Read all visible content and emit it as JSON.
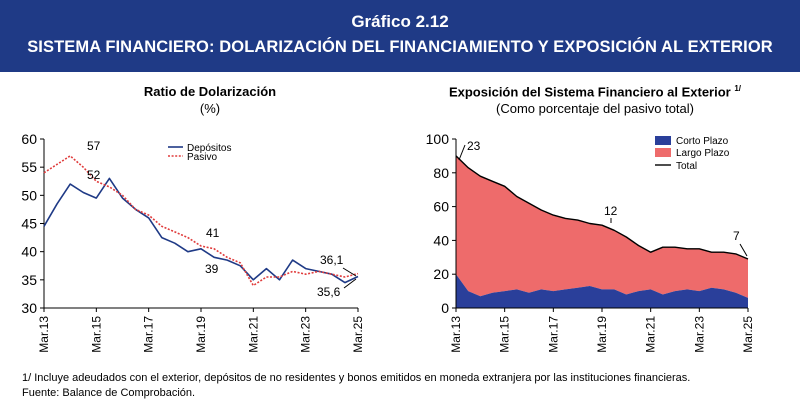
{
  "header": {
    "number": "Gráfico 2.12",
    "title": "SISTEMA FINANCIERO: DOLARIZACIÓN DEL FINANCIAMIENTO Y EXPOSICIÓN AL EXTERIOR"
  },
  "footnotes": {
    "note": "1/ Incluye adeudados con el exterior, depósitos de no residentes y bonos emitidos en moneda extranjera por las instituciones financieras.",
    "source": "Fuente: Balance de Comprobación."
  },
  "colors": {
    "header_bg": "#1f3a86",
    "depositos": "#1f3a86",
    "pasivo": "#e03c3c",
    "corto_plazo": "#2a3f9a",
    "largo_plazo": "#ee6b6b",
    "total": "#000000"
  },
  "chart_data": [
    {
      "type": "line",
      "title": "Ratio de Dolarización",
      "subtitle": "(%)",
      "x_ticks": [
        "Mar.13",
        "Mar.15",
        "Mar.17",
        "Mar.19",
        "Mar.21",
        "Mar.23",
        "Mar.25"
      ],
      "ylim": [
        30,
        60
      ],
      "y_ticks": [
        30,
        35,
        40,
        45,
        50,
        55,
        60
      ],
      "grid": false,
      "legend": "top-center",
      "series": [
        {
          "name": "Depósitos",
          "style": "solid",
          "points": [
            [
              "Mar.13",
              44.5
            ],
            [
              "Sep.13",
              48.5
            ],
            [
              "Mar.14",
              52
            ],
            [
              "Sep.14",
              50.5
            ],
            [
              "Mar.15",
              49.5
            ],
            [
              "Sep.15",
              53
            ],
            [
              "Mar.16",
              49.5
            ],
            [
              "Sep.16",
              47.5
            ],
            [
              "Mar.17",
              46
            ],
            [
              "Sep.17",
              42.5
            ],
            [
              "Mar.18",
              41.5
            ],
            [
              "Sep.18",
              40
            ],
            [
              "Mar.19",
              40.5
            ],
            [
              "Sep.19",
              39
            ],
            [
              "Mar.20",
              38.5
            ],
            [
              "Sep.20",
              37.5
            ],
            [
              "Mar.21",
              35
            ],
            [
              "Sep.21",
              37
            ],
            [
              "Mar.22",
              35
            ],
            [
              "Sep.22",
              38.5
            ],
            [
              "Mar.23",
              37
            ],
            [
              "Sep.23",
              36.5
            ],
            [
              "Mar.24",
              36
            ],
            [
              "Sep.24",
              34.5
            ],
            [
              "Mar.25",
              35.6
            ]
          ]
        },
        {
          "name": "Pasivo",
          "style": "dotted",
          "points": [
            [
              "Mar.13",
              54
            ],
            [
              "Sep.13",
              55.5
            ],
            [
              "Mar.14",
              57
            ],
            [
              "Sep.14",
              55
            ],
            [
              "Mar.15",
              52.5
            ],
            [
              "Sep.15",
              51.5
            ],
            [
              "Mar.16",
              50
            ],
            [
              "Sep.16",
              47.5
            ],
            [
              "Mar.17",
              46.5
            ],
            [
              "Sep.17",
              44.5
            ],
            [
              "Mar.18",
              43.5
            ],
            [
              "Sep.18",
              42.5
            ],
            [
              "Mar.19",
              41
            ],
            [
              "Sep.19",
              40.5
            ],
            [
              "Mar.20",
              39
            ],
            [
              "Sep.20",
              38
            ],
            [
              "Mar.21",
              34
            ],
            [
              "Sep.21",
              35.5
            ],
            [
              "Mar.22",
              35.5
            ],
            [
              "Sep.22",
              36.5
            ],
            [
              "Mar.23",
              36
            ],
            [
              "Sep.23",
              36.5
            ],
            [
              "Mar.24",
              36
            ],
            [
              "Sep.24",
              35.5
            ],
            [
              "Mar.25",
              36.1
            ]
          ]
        }
      ],
      "annotations": [
        "57",
        "52",
        "41",
        "39",
        "36,1",
        "35,6"
      ]
    },
    {
      "type": "area",
      "title": "Exposición del Sistema Financiero al Exterior",
      "title_sup": "1/",
      "subtitle": "(Como porcentaje del pasivo total)",
      "x_ticks": [
        "Mar.13",
        "Mar.15",
        "Mar.17",
        "Mar.19",
        "Mar.21",
        "Mar.23",
        "Mar.25"
      ],
      "ylim": [
        0,
        100
      ],
      "y_ticks": [
        0,
        20,
        40,
        60,
        80,
        100
      ],
      "grid": false,
      "legend": "top-right",
      "stacked": true,
      "series": [
        {
          "name": "Corto Plazo",
          "points": [
            [
              "Mar.13",
              20
            ],
            [
              "Sep.13",
              10
            ],
            [
              "Mar.14",
              7
            ],
            [
              "Sep.14",
              9
            ],
            [
              "Mar.15",
              10
            ],
            [
              "Sep.15",
              11
            ],
            [
              "Mar.16",
              9
            ],
            [
              "Sep.16",
              11
            ],
            [
              "Mar.17",
              10
            ],
            [
              "Sep.17",
              11
            ],
            [
              "Mar.18",
              12
            ],
            [
              "Sep.18",
              13
            ],
            [
              "Mar.19",
              11
            ],
            [
              "Sep.19",
              11
            ],
            [
              "Mar.20",
              8
            ],
            [
              "Sep.20",
              10
            ],
            [
              "Mar.21",
              11
            ],
            [
              "Sep.21",
              8
            ],
            [
              "Mar.22",
              10
            ],
            [
              "Sep.22",
              11
            ],
            [
              "Mar.23",
              10
            ],
            [
              "Sep.23",
              12
            ],
            [
              "Mar.24",
              11
            ],
            [
              "Sep.24",
              9
            ],
            [
              "Mar.25",
              6
            ]
          ]
        },
        {
          "name": "Largo Plazo",
          "points": [
            [
              "Mar.13",
              70
            ],
            [
              "Sep.13",
              73
            ],
            [
              "Mar.14",
              71
            ],
            [
              "Sep.14",
              66
            ],
            [
              "Mar.15",
              62
            ],
            [
              "Sep.15",
              55
            ],
            [
              "Mar.16",
              53
            ],
            [
              "Sep.16",
              47
            ],
            [
              "Mar.17",
              45
            ],
            [
              "Sep.17",
              42
            ],
            [
              "Mar.18",
              40
            ],
            [
              "Sep.18",
              37
            ],
            [
              "Mar.19",
              38
            ],
            [
              "Sep.19",
              35
            ],
            [
              "Mar.20",
              34
            ],
            [
              "Sep.20",
              27
            ],
            [
              "Mar.21",
              22
            ],
            [
              "Sep.21",
              28
            ],
            [
              "Mar.22",
              26
            ],
            [
              "Sep.22",
              24
            ],
            [
              "Mar.23",
              25
            ],
            [
              "Sep.23",
              21
            ],
            [
              "Mar.24",
              22
            ],
            [
              "Sep.24",
              23
            ],
            [
              "Mar.25",
              23
            ]
          ]
        },
        {
          "name": "Total",
          "points": [
            [
              "Mar.13",
              90
            ],
            [
              "Sep.13",
              83
            ],
            [
              "Mar.14",
              78
            ],
            [
              "Sep.14",
              75
            ],
            [
              "Mar.15",
              72
            ],
            [
              "Sep.15",
              66
            ],
            [
              "Mar.16",
              62
            ],
            [
              "Sep.16",
              58
            ],
            [
              "Mar.17",
              55
            ],
            [
              "Sep.17",
              53
            ],
            [
              "Mar.18",
              52
            ],
            [
              "Sep.18",
              50
            ],
            [
              "Mar.19",
              49
            ],
            [
              "Sep.19",
              46
            ],
            [
              "Mar.20",
              42
            ],
            [
              "Sep.20",
              37
            ],
            [
              "Mar.21",
              33
            ],
            [
              "Sep.21",
              36
            ],
            [
              "Mar.22",
              36
            ],
            [
              "Sep.22",
              35
            ],
            [
              "Mar.23",
              35
            ],
            [
              "Sep.23",
              33
            ],
            [
              "Mar.24",
              33
            ],
            [
              "Sep.24",
              32
            ],
            [
              "Mar.25",
              29
            ]
          ]
        }
      ],
      "annotations": [
        "23",
        "12",
        "7"
      ]
    }
  ]
}
